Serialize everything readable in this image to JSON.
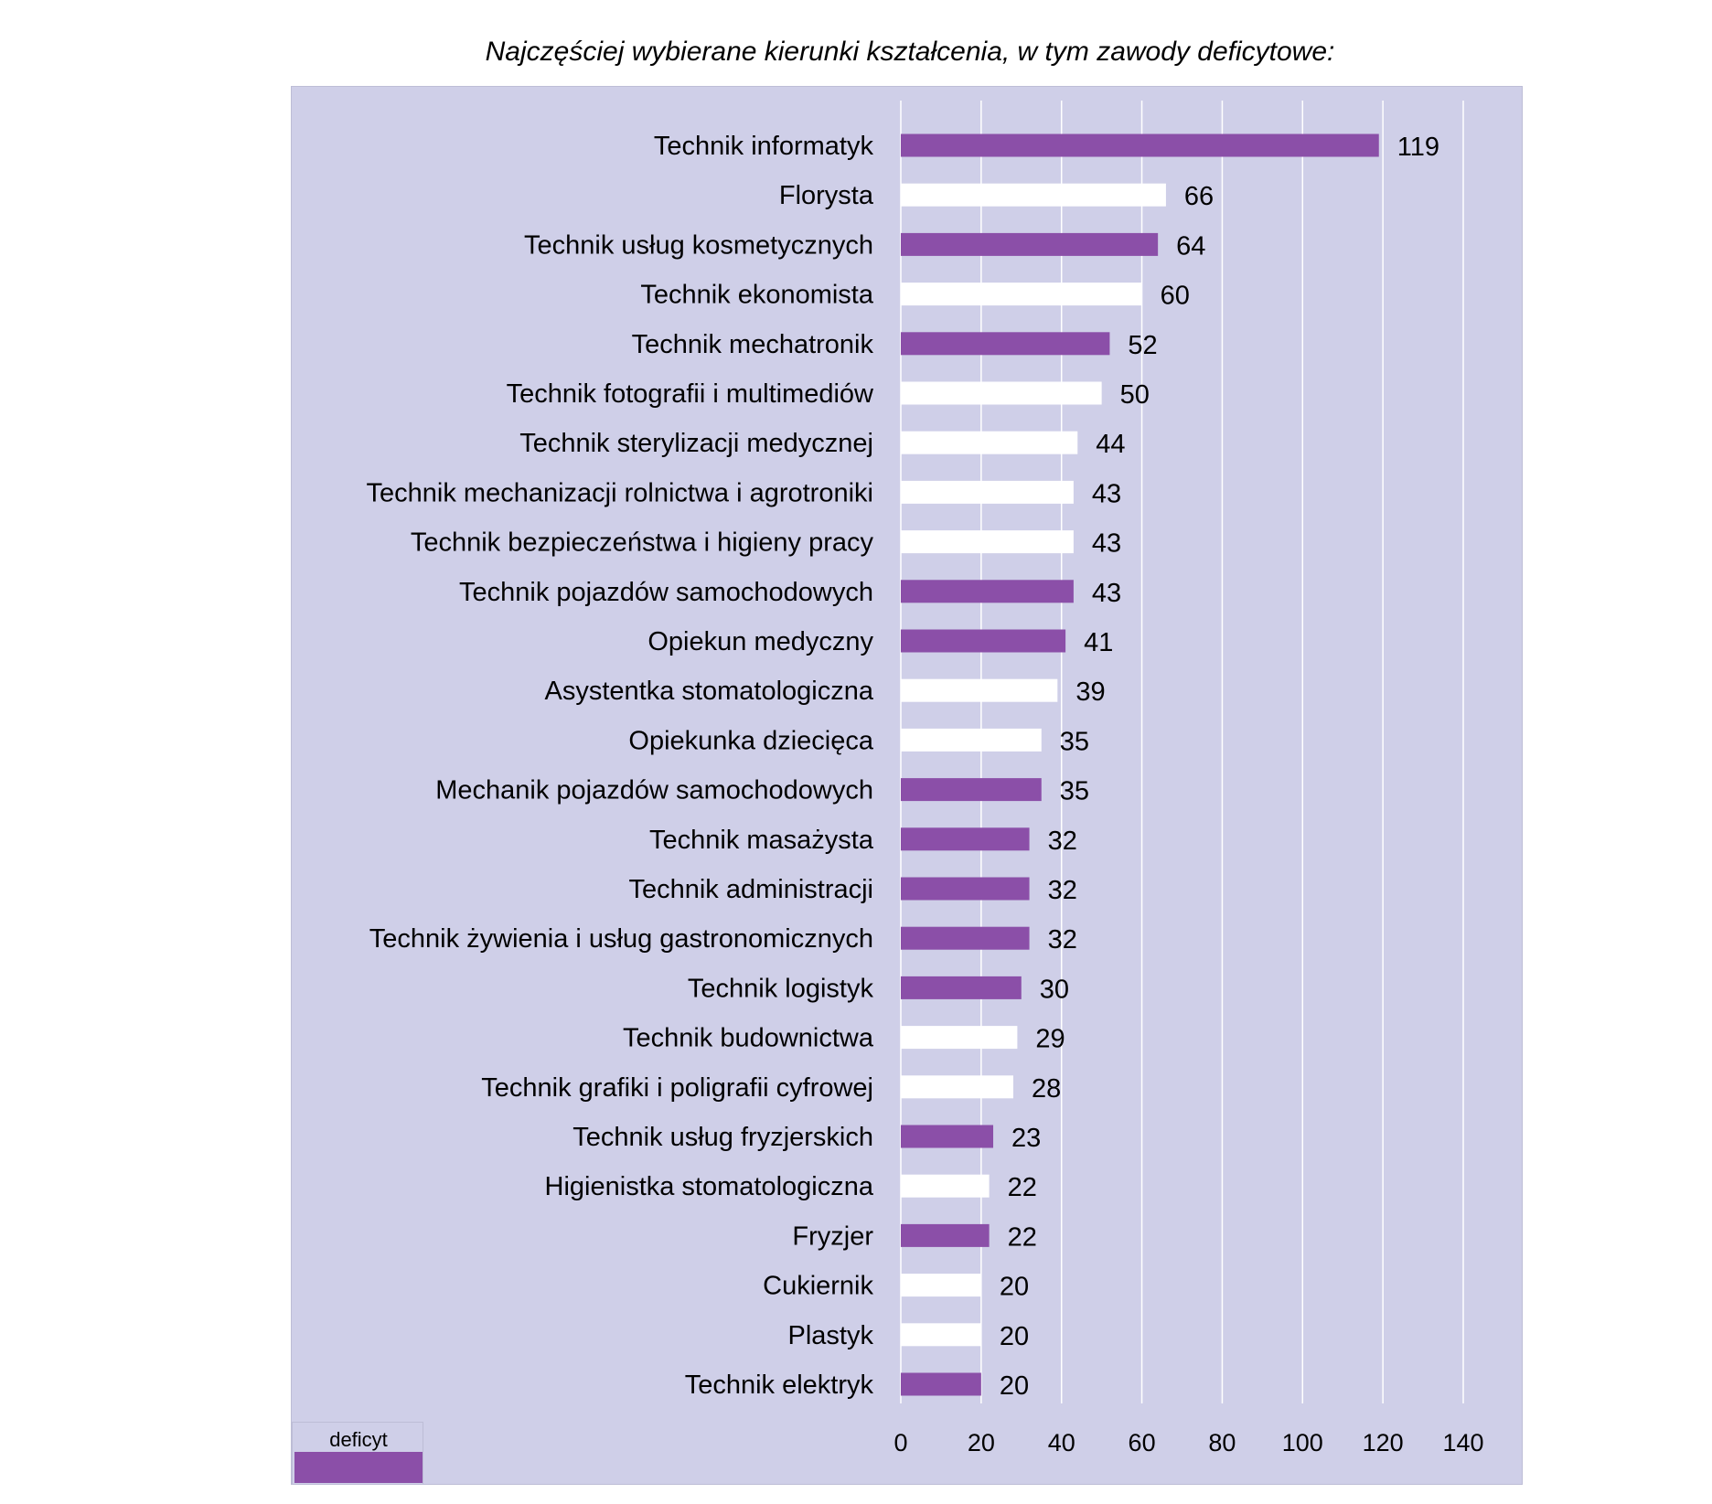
{
  "title": "Najczęściej wybierane kierunki kształcenia, w tym zawody deficytowe:",
  "colors": {
    "deficit": "#8b4fa8",
    "other": "#ffffff",
    "plot_bg": "#cfcfe8",
    "grid": "#ffffff",
    "text": "#000000"
  },
  "legend": {
    "label": "deficyt"
  },
  "chart_data": {
    "type": "bar",
    "orientation": "horizontal",
    "title": "Najczęściej wybierane kierunki kształcenia, w tym zawody deficytowe:",
    "xlabel": "",
    "ylabel": "",
    "xlim": [
      0,
      140
    ],
    "ticks": [
      0,
      20,
      40,
      60,
      80,
      100,
      120,
      140
    ],
    "grid": true,
    "legend_position": "bottom-left",
    "categories": [
      "Technik informatyk",
      "Florysta",
      "Technik usług kosmetycznych",
      "Technik ekonomista",
      "Technik mechatronik",
      "Technik fotografii i multimediów",
      "Technik sterylizacji medycznej",
      "Technik mechanizacji rolnictwa i agrotroniki",
      "Technik bezpieczeństwa i higieny pracy",
      "Technik pojazdów samochodowych",
      "Opiekun medyczny",
      "Asystentka stomatologiczna",
      "Opiekunka dziecięca",
      "Mechanik pojazdów samochodowych",
      "Technik masażysta",
      "Technik administracji",
      "Technik żywienia i usług gastronomicznych",
      "Technik logistyk",
      "Technik budownictwa",
      "Technik grafiki i poligrafii cyfrowej",
      "Technik usług fryzjerskich",
      "Higienistka stomatologiczna",
      "Fryzjer",
      "Cukiernik",
      "Plastyk",
      "Technik elektryk"
    ],
    "values": [
      119,
      66,
      64,
      60,
      52,
      50,
      44,
      43,
      43,
      43,
      41,
      39,
      35,
      35,
      32,
      32,
      32,
      30,
      29,
      28,
      23,
      22,
      22,
      20,
      20,
      20
    ],
    "deficit": [
      true,
      false,
      true,
      false,
      true,
      false,
      false,
      false,
      false,
      true,
      true,
      false,
      false,
      true,
      true,
      true,
      true,
      true,
      false,
      false,
      true,
      false,
      true,
      false,
      false,
      true
    ]
  }
}
